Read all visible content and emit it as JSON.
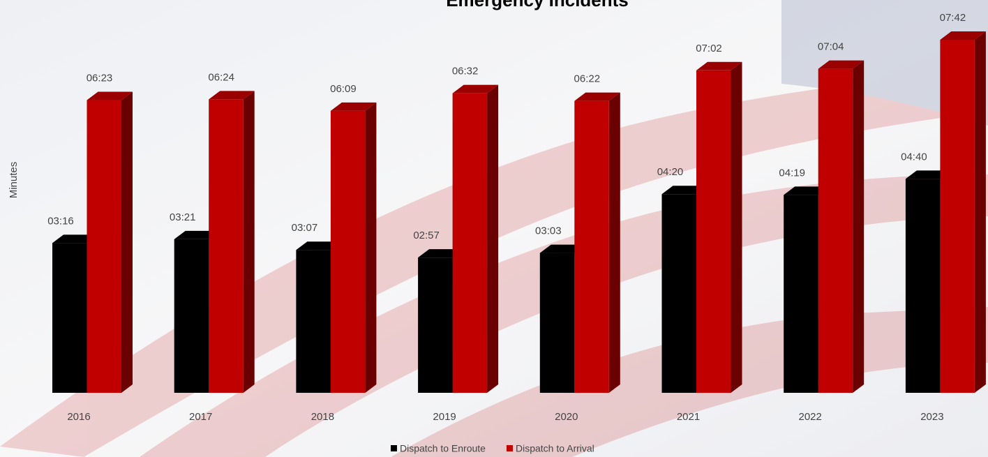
{
  "chart_data": {
    "type": "bar3d",
    "title": "Emergency Incidents",
    "y_label": "Minutes",
    "categories": [
      "2016",
      "2017",
      "2018",
      "2019",
      "2020",
      "2021",
      "2022",
      "2023"
    ],
    "series": [
      {
        "name": "Dispatch to Enroute",
        "color": "#000000",
        "values": [
          3.2667,
          3.35,
          3.1167,
          2.95,
          3.05,
          4.3333,
          4.3167,
          4.6667
        ],
        "value_labels": [
          "03:16",
          "03:21",
          "03:07",
          "02:57",
          "03:03",
          "04:20",
          "04:19",
          "04:40"
        ]
      },
      {
        "name": "Dispatch to Arrival",
        "color": "#c00000",
        "values": [
          6.3833,
          6.4,
          6.15,
          6.5333,
          6.3667,
          7.0333,
          7.0667,
          7.7
        ],
        "value_labels": [
          "06:23",
          "06:24",
          "06:09",
          "06:32",
          "06:22",
          "07:02",
          "07:04",
          "07:42"
        ]
      }
    ]
  }
}
